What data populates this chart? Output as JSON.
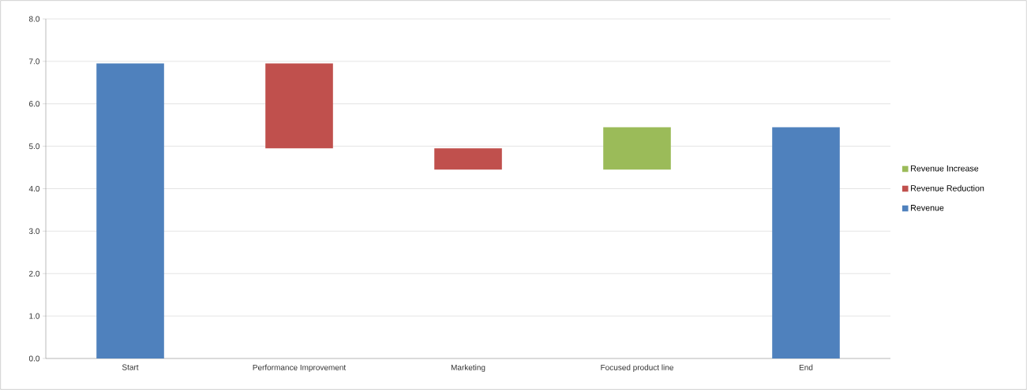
{
  "chart_data": {
    "type": "bar",
    "categories": [
      "Start",
      "Performance Improvement",
      "Marketing",
      "Focused product line",
      "End"
    ],
    "series": [
      {
        "name": "Revenue Increase",
        "color": "#9bbb59",
        "values": [
          null,
          null,
          null,
          1.0,
          null
        ],
        "base": [
          null,
          null,
          null,
          4.45,
          null
        ]
      },
      {
        "name": "Revenue Reduction",
        "color": "#c0504d",
        "values": [
          null,
          2.0,
          0.5,
          null,
          null
        ],
        "base": [
          null,
          4.95,
          4.45,
          null,
          null
        ]
      },
      {
        "name": "Revenue",
        "color": "#4f81bd",
        "values": [
          6.95,
          null,
          null,
          null,
          5.45
        ],
        "base": [
          0,
          null,
          null,
          null,
          0
        ]
      }
    ],
    "ylim": [
      0,
      8
    ],
    "yticks": [
      {
        "value": 0,
        "label": "0.0"
      },
      {
        "value": 1,
        "label": "1.0"
      },
      {
        "value": 2,
        "label": "2.0"
      },
      {
        "value": 3,
        "label": "3.0"
      },
      {
        "value": 4,
        "label": "4.0"
      },
      {
        "value": 5,
        "label": "5.0"
      },
      {
        "value": 6,
        "label": "6.0"
      },
      {
        "value": 7,
        "label": "7.0"
      },
      {
        "value": 8,
        "label": "8.0"
      }
    ],
    "grid": "y",
    "legend": "right"
  }
}
